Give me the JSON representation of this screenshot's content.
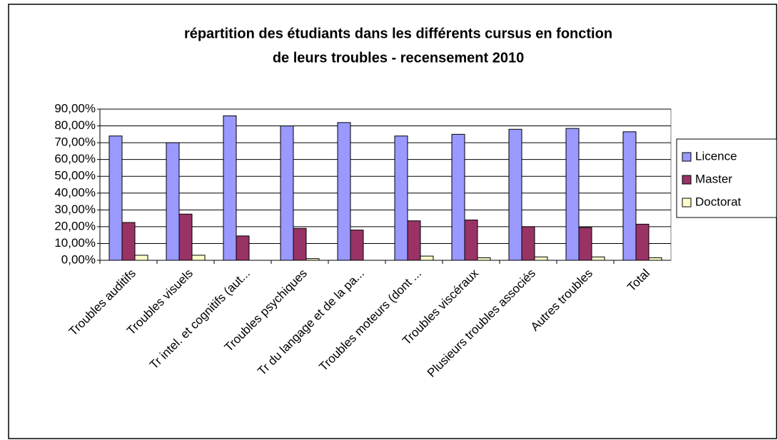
{
  "chart_data": {
    "type": "bar",
    "title": [
      "répartition des étudiants dans les différents cursus en fonction",
      "de leurs troubles - recensement 2010"
    ],
    "categories": [
      "Troubles auditifs",
      "Troubles visuels",
      "Tr intel. et cognitifs (aut...",
      "Troubles psychiques",
      "Tr du langage et de la pa...",
      "Troubles moteurs (dont ...",
      "Troubles viscéraux",
      "Plusieurs troubles associés",
      "Autres troubles",
      "Total"
    ],
    "series": [
      {
        "name": "Licence",
        "color": "#9999ff",
        "values": [
          74,
          70,
          86,
          80,
          82,
          74,
          75,
          78,
          78.5,
          76.5
        ]
      },
      {
        "name": "Master",
        "color": "#993366",
        "values": [
          22.5,
          27.5,
          14.5,
          19,
          18,
          23.5,
          24,
          20,
          19.5,
          21.5
        ]
      },
      {
        "name": "Doctorat",
        "color": "#ffffcc",
        "values": [
          3,
          3,
          0,
          1,
          0,
          2.5,
          1.5,
          2,
          2,
          1.5
        ]
      }
    ],
    "ylim": [
      0,
      90
    ],
    "yticks": [
      {
        "value": 0,
        "label": "0,00%"
      },
      {
        "value": 10,
        "label": "10,00%"
      },
      {
        "value": 20,
        "label": "20,00%"
      },
      {
        "value": 30,
        "label": "30,00%"
      },
      {
        "value": 40,
        "label": "40,00%"
      },
      {
        "value": 50,
        "label": "50,00%"
      },
      {
        "value": 60,
        "label": "60,00%"
      },
      {
        "value": 70,
        "label": "70,00%"
      },
      {
        "value": 80,
        "label": "80,00%"
      },
      {
        "value": 90,
        "label": "90,00%"
      }
    ],
    "grid": true,
    "legend": "right"
  }
}
